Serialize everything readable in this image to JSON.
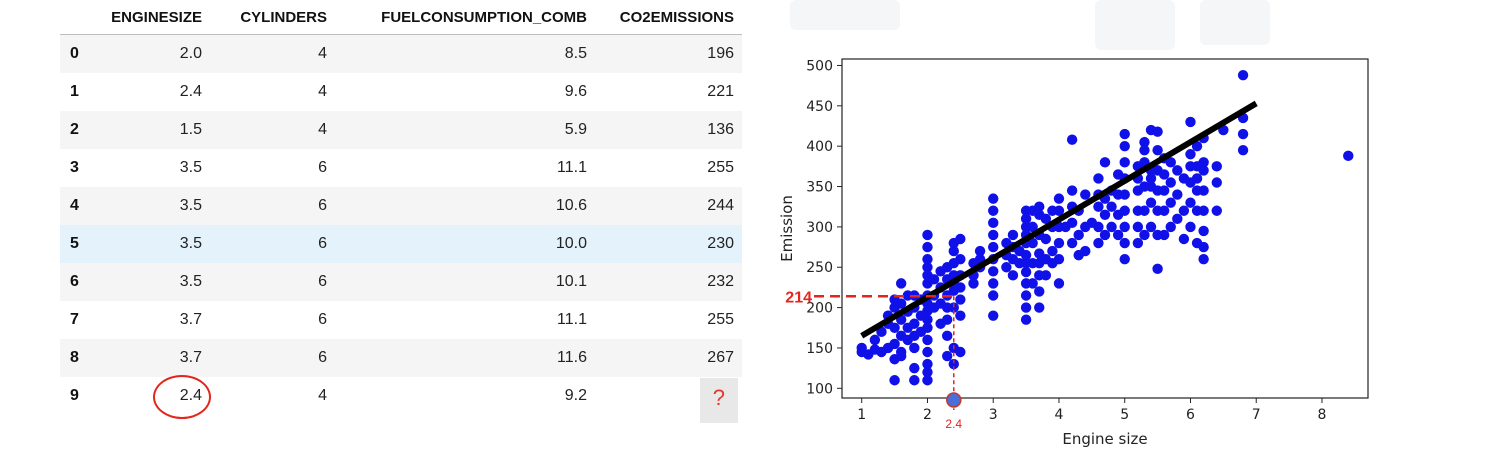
{
  "table": {
    "columns": [
      "",
      "ENGINESIZE",
      "CYLINDERS",
      "FUELCONSUMPTION_COMB",
      "CO2EMISSIONS"
    ],
    "rows": [
      {
        "idx": "0",
        "engine": "2.0",
        "cyl": "4",
        "fuel": "8.5",
        "co2": "196"
      },
      {
        "idx": "1",
        "engine": "2.4",
        "cyl": "4",
        "fuel": "9.6",
        "co2": "221"
      },
      {
        "idx": "2",
        "engine": "1.5",
        "cyl": "4",
        "fuel": "5.9",
        "co2": "136"
      },
      {
        "idx": "3",
        "engine": "3.5",
        "cyl": "6",
        "fuel": "11.1",
        "co2": "255"
      },
      {
        "idx": "4",
        "engine": "3.5",
        "cyl": "6",
        "fuel": "10.6",
        "co2": "244"
      },
      {
        "idx": "5",
        "engine": "3.5",
        "cyl": "6",
        "fuel": "10.0",
        "co2": "230"
      },
      {
        "idx": "6",
        "engine": "3.5",
        "cyl": "6",
        "fuel": "10.1",
        "co2": "232"
      },
      {
        "idx": "7",
        "engine": "3.7",
        "cyl": "6",
        "fuel": "11.1",
        "co2": "255"
      },
      {
        "idx": "8",
        "engine": "3.7",
        "cyl": "6",
        "fuel": "11.6",
        "co2": "267"
      },
      {
        "idx": "9",
        "engine": "2.4",
        "cyl": "4",
        "fuel": "9.2",
        "co2": "?"
      }
    ],
    "highlight_row": 5,
    "circled_row": 9,
    "circle_color": "#e3261b"
  },
  "chart_data": {
    "type": "scatter",
    "xlabel": "Engine size",
    "ylabel": "Emission",
    "xlim": [
      0.7,
      8.7
    ],
    "ylim": [
      88,
      508
    ],
    "xticks": [
      1,
      2,
      3,
      4,
      5,
      6,
      7,
      8
    ],
    "yticks": [
      100,
      150,
      200,
      250,
      300,
      350,
      400,
      450,
      500
    ],
    "grid": false,
    "point_color": "#1010e8",
    "line_color": "#000000",
    "accent_color": "#e3261b",
    "regression_line": {
      "x": [
        1.0,
        7.0
      ],
      "y": [
        165,
        453
      ]
    },
    "prediction": {
      "x": 2.4,
      "y": 214,
      "x_label": "2.4",
      "y_label": "214"
    },
    "points": [
      [
        1.0,
        150
      ],
      [
        1.0,
        145
      ],
      [
        1.1,
        142
      ],
      [
        1.2,
        148
      ],
      [
        1.2,
        160
      ],
      [
        1.3,
        145
      ],
      [
        1.3,
        170
      ],
      [
        1.4,
        150
      ],
      [
        1.4,
        180
      ],
      [
        1.4,
        190
      ],
      [
        1.5,
        136
      ],
      [
        1.5,
        155
      ],
      [
        1.5,
        175
      ],
      [
        1.5,
        200
      ],
      [
        1.5,
        210
      ],
      [
        1.5,
        110
      ],
      [
        1.6,
        145
      ],
      [
        1.6,
        165
      ],
      [
        1.6,
        185
      ],
      [
        1.6,
        205
      ],
      [
        1.6,
        230
      ],
      [
        1.6,
        140
      ],
      [
        1.7,
        160
      ],
      [
        1.7,
        175
      ],
      [
        1.7,
        195
      ],
      [
        1.7,
        215
      ],
      [
        1.8,
        150
      ],
      [
        1.8,
        165
      ],
      [
        1.8,
        180
      ],
      [
        1.8,
        200
      ],
      [
        1.8,
        215
      ],
      [
        1.8,
        110
      ],
      [
        1.8,
        125
      ],
      [
        1.9,
        170
      ],
      [
        1.9,
        190
      ],
      [
        1.9,
        210
      ],
      [
        2.0,
        120
      ],
      [
        2.0,
        130
      ],
      [
        2.0,
        145
      ],
      [
        2.0,
        160
      ],
      [
        2.0,
        175
      ],
      [
        2.0,
        185
      ],
      [
        2.0,
        196
      ],
      [
        2.0,
        205
      ],
      [
        2.0,
        215
      ],
      [
        2.0,
        230
      ],
      [
        2.0,
        240
      ],
      [
        2.0,
        250
      ],
      [
        2.0,
        260
      ],
      [
        2.0,
        275
      ],
      [
        2.0,
        290
      ],
      [
        2.0,
        110
      ],
      [
        2.1,
        200
      ],
      [
        2.1,
        215
      ],
      [
        2.1,
        235
      ],
      [
        2.2,
        180
      ],
      [
        2.2,
        205
      ],
      [
        2.2,
        225
      ],
      [
        2.2,
        245
      ],
      [
        2.3,
        165
      ],
      [
        2.3,
        185
      ],
      [
        2.3,
        200
      ],
      [
        2.3,
        215
      ],
      [
        2.3,
        235
      ],
      [
        2.3,
        250
      ],
      [
        2.3,
        140
      ],
      [
        2.4,
        130
      ],
      [
        2.4,
        150
      ],
      [
        2.4,
        200
      ],
      [
        2.4,
        221
      ],
      [
        2.4,
        230
      ],
      [
        2.4,
        240
      ],
      [
        2.4,
        255
      ],
      [
        2.4,
        270
      ],
      [
        2.4,
        280
      ],
      [
        2.5,
        145
      ],
      [
        2.5,
        190
      ],
      [
        2.5,
        210
      ],
      [
        2.5,
        225
      ],
      [
        2.5,
        240
      ],
      [
        2.5,
        260
      ],
      [
        2.5,
        285
      ],
      [
        2.7,
        230
      ],
      [
        2.7,
        240
      ],
      [
        2.7,
        255
      ],
      [
        2.8,
        250
      ],
      [
        2.8,
        260
      ],
      [
        2.8,
        270
      ],
      [
        3.0,
        190
      ],
      [
        3.0,
        215
      ],
      [
        3.0,
        230
      ],
      [
        3.0,
        245
      ],
      [
        3.0,
        260
      ],
      [
        3.0,
        275
      ],
      [
        3.0,
        290
      ],
      [
        3.0,
        305
      ],
      [
        3.0,
        320
      ],
      [
        3.0,
        335
      ],
      [
        3.2,
        250
      ],
      [
        3.2,
        265
      ],
      [
        3.2,
        280
      ],
      [
        3.3,
        240
      ],
      [
        3.3,
        260
      ],
      [
        3.3,
        275
      ],
      [
        3.3,
        290
      ],
      [
        3.4,
        255
      ],
      [
        3.4,
        270
      ],
      [
        3.5,
        185
      ],
      [
        3.5,
        200
      ],
      [
        3.5,
        215
      ],
      [
        3.5,
        230
      ],
      [
        3.5,
        244
      ],
      [
        3.5,
        255
      ],
      [
        3.5,
        265
      ],
      [
        3.5,
        280
      ],
      [
        3.5,
        290
      ],
      [
        3.5,
        300
      ],
      [
        3.5,
        310
      ],
      [
        3.5,
        320
      ],
      [
        3.6,
        230
      ],
      [
        3.6,
        255
      ],
      [
        3.6,
        280
      ],
      [
        3.6,
        300
      ],
      [
        3.6,
        320
      ],
      [
        3.7,
        200
      ],
      [
        3.7,
        220
      ],
      [
        3.7,
        240
      ],
      [
        3.7,
        255
      ],
      [
        3.7,
        267
      ],
      [
        3.7,
        290
      ],
      [
        3.7,
        315
      ],
      [
        3.7,
        325
      ],
      [
        3.8,
        240
      ],
      [
        3.8,
        260
      ],
      [
        3.8,
        285
      ],
      [
        3.8,
        310
      ],
      [
        3.9,
        255
      ],
      [
        3.9,
        270
      ],
      [
        3.9,
        300
      ],
      [
        3.9,
        320
      ],
      [
        4.0,
        230
      ],
      [
        4.0,
        260
      ],
      [
        4.0,
        280
      ],
      [
        4.0,
        300
      ],
      [
        4.0,
        320
      ],
      [
        4.0,
        335
      ],
      [
        4.1,
        300
      ],
      [
        4.2,
        280
      ],
      [
        4.2,
        305
      ],
      [
        4.2,
        325
      ],
      [
        4.2,
        345
      ],
      [
        4.2,
        408
      ],
      [
        4.3,
        265
      ],
      [
        4.3,
        290
      ],
      [
        4.3,
        320
      ],
      [
        4.4,
        270
      ],
      [
        4.4,
        300
      ],
      [
        4.4,
        340
      ],
      [
        4.5,
        305
      ],
      [
        4.6,
        280
      ],
      [
        4.6,
        300
      ],
      [
        4.6,
        325
      ],
      [
        4.6,
        340
      ],
      [
        4.6,
        360
      ],
      [
        4.7,
        290
      ],
      [
        4.7,
        315
      ],
      [
        4.7,
        335
      ],
      [
        4.7,
        380
      ],
      [
        4.8,
        300
      ],
      [
        4.8,
        325
      ],
      [
        4.8,
        345
      ],
      [
        4.9,
        290
      ],
      [
        4.9,
        315
      ],
      [
        4.9,
        340
      ],
      [
        4.9,
        365
      ],
      [
        5.0,
        260
      ],
      [
        5.0,
        280
      ],
      [
        5.0,
        300
      ],
      [
        5.0,
        320
      ],
      [
        5.0,
        340
      ],
      [
        5.0,
        360
      ],
      [
        5.0,
        380
      ],
      [
        5.0,
        400
      ],
      [
        5.0,
        415
      ],
      [
        5.2,
        280
      ],
      [
        5.2,
        300
      ],
      [
        5.2,
        320
      ],
      [
        5.2,
        345
      ],
      [
        5.2,
        360
      ],
      [
        5.2,
        375
      ],
      [
        5.3,
        290
      ],
      [
        5.3,
        320
      ],
      [
        5.3,
        350
      ],
      [
        5.3,
        380
      ],
      [
        5.3,
        395
      ],
      [
        5.3,
        405
      ],
      [
        5.4,
        300
      ],
      [
        5.4,
        330
      ],
      [
        5.4,
        350
      ],
      [
        5.4,
        360
      ],
      [
        5.4,
        370
      ],
      [
        5.4,
        420
      ],
      [
        5.5,
        248
      ],
      [
        5.5,
        290
      ],
      [
        5.5,
        320
      ],
      [
        5.5,
        345
      ],
      [
        5.5,
        370
      ],
      [
        5.5,
        395
      ],
      [
        5.5,
        418
      ],
      [
        5.6,
        290
      ],
      [
        5.6,
        320
      ],
      [
        5.6,
        345
      ],
      [
        5.6,
        365
      ],
      [
        5.6,
        385
      ],
      [
        5.7,
        300
      ],
      [
        5.7,
        330
      ],
      [
        5.7,
        355
      ],
      [
        5.7,
        380
      ],
      [
        5.8,
        310
      ],
      [
        5.8,
        340
      ],
      [
        5.8,
        370
      ],
      [
        5.9,
        285
      ],
      [
        5.9,
        320
      ],
      [
        5.9,
        360
      ],
      [
        6.0,
        300
      ],
      [
        6.0,
        330
      ],
      [
        6.0,
        355
      ],
      [
        6.0,
        375
      ],
      [
        6.0,
        390
      ],
      [
        6.0,
        430
      ],
      [
        6.1,
        280
      ],
      [
        6.1,
        320
      ],
      [
        6.1,
        345
      ],
      [
        6.1,
        360
      ],
      [
        6.1,
        375
      ],
      [
        6.1,
        400
      ],
      [
        6.2,
        260
      ],
      [
        6.2,
        275
      ],
      [
        6.2,
        295
      ],
      [
        6.2,
        320
      ],
      [
        6.2,
        345
      ],
      [
        6.2,
        370
      ],
      [
        6.2,
        380
      ],
      [
        6.2,
        410
      ],
      [
        6.4,
        320
      ],
      [
        6.4,
        355
      ],
      [
        6.4,
        375
      ],
      [
        6.5,
        420
      ],
      [
        6.8,
        395
      ],
      [
        6.8,
        415
      ],
      [
        6.8,
        435
      ],
      [
        6.8,
        488
      ],
      [
        8.4,
        388
      ]
    ]
  }
}
